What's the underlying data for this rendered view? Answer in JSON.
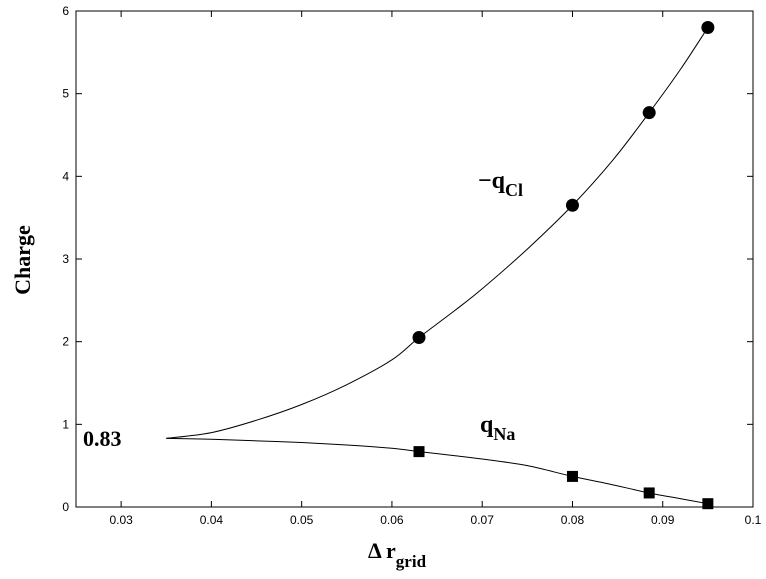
{
  "chart_data": {
    "type": "scatter",
    "title": "",
    "xlabel": "Δ r",
    "xlabel_subscript": "grid",
    "ylabel": "Charge",
    "xlim": [
      0.025,
      0.1
    ],
    "ylim": [
      0,
      6
    ],
    "x_ticks": [
      "0.03",
      "0.04",
      "0.05",
      "0.06",
      "0.07",
      "0.08",
      "0.09",
      "0.1"
    ],
    "y_ticks": [
      "0",
      "1",
      "2",
      "3",
      "4",
      "5",
      "6"
    ],
    "grid": false,
    "series": [
      {
        "name": "−q",
        "name_subscript": "Cl",
        "marker": "circle",
        "points": [
          {
            "x": 0.063,
            "y": 2.05
          },
          {
            "x": 0.08,
            "y": 3.65
          },
          {
            "x": 0.0885,
            "y": 4.77
          },
          {
            "x": 0.095,
            "y": 5.8
          }
        ],
        "fit_curve": [
          {
            "x": 0.035,
            "y": 0.83
          },
          {
            "x": 0.04,
            "y": 0.9
          },
          {
            "x": 0.045,
            "y": 1.05
          },
          {
            "x": 0.05,
            "y": 1.24
          },
          {
            "x": 0.055,
            "y": 1.48
          },
          {
            "x": 0.06,
            "y": 1.78
          },
          {
            "x": 0.063,
            "y": 2.05
          },
          {
            "x": 0.067,
            "y": 2.38
          },
          {
            "x": 0.07,
            "y": 2.64
          },
          {
            "x": 0.075,
            "y": 3.12
          },
          {
            "x": 0.08,
            "y": 3.65
          },
          {
            "x": 0.0845,
            "y": 4.2
          },
          {
            "x": 0.0885,
            "y": 4.77
          },
          {
            "x": 0.092,
            "y": 5.3
          },
          {
            "x": 0.095,
            "y": 5.8
          }
        ]
      },
      {
        "name": "q",
        "name_subscript": "Na",
        "marker": "square",
        "points": [
          {
            "x": 0.063,
            "y": 0.67
          },
          {
            "x": 0.08,
            "y": 0.37
          },
          {
            "x": 0.0885,
            "y": 0.17
          },
          {
            "x": 0.095,
            "y": 0.04
          }
        ],
        "fit_curve": [
          {
            "x": 0.035,
            "y": 0.83
          },
          {
            "x": 0.04,
            "y": 0.82
          },
          {
            "x": 0.045,
            "y": 0.8
          },
          {
            "x": 0.05,
            "y": 0.78
          },
          {
            "x": 0.055,
            "y": 0.75
          },
          {
            "x": 0.06,
            "y": 0.71
          },
          {
            "x": 0.063,
            "y": 0.67
          },
          {
            "x": 0.067,
            "y": 0.62
          },
          {
            "x": 0.07,
            "y": 0.58
          },
          {
            "x": 0.075,
            "y": 0.5
          },
          {
            "x": 0.08,
            "y": 0.37
          },
          {
            "x": 0.084,
            "y": 0.28
          },
          {
            "x": 0.0885,
            "y": 0.17
          },
          {
            "x": 0.092,
            "y": 0.1
          },
          {
            "x": 0.095,
            "y": 0.04
          }
        ]
      }
    ],
    "annotations": [
      {
        "text": "0.83"
      }
    ]
  }
}
